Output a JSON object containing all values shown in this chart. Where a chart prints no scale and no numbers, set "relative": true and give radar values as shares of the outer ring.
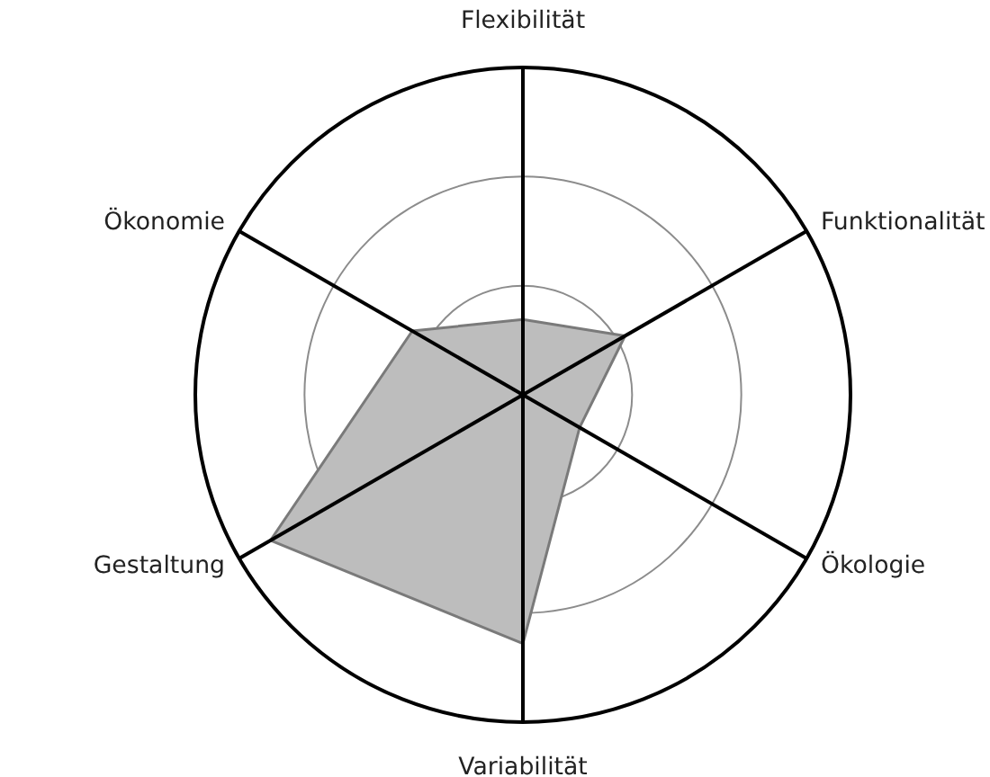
{
  "chart_data": {
    "type": "radar",
    "relative": true,
    "grid": true,
    "categories": [
      "Flexibilität",
      "Funktionalität",
      "Ökologie",
      "Variabilität",
      "Gestaltung",
      "Ökonomie"
    ],
    "series": [
      {
        "color": "#bdbdbd",
        "values": [
          0.23,
          0.36,
          0.2,
          0.76,
          0.89,
          0.39
        ]
      }
    ]
  }
}
